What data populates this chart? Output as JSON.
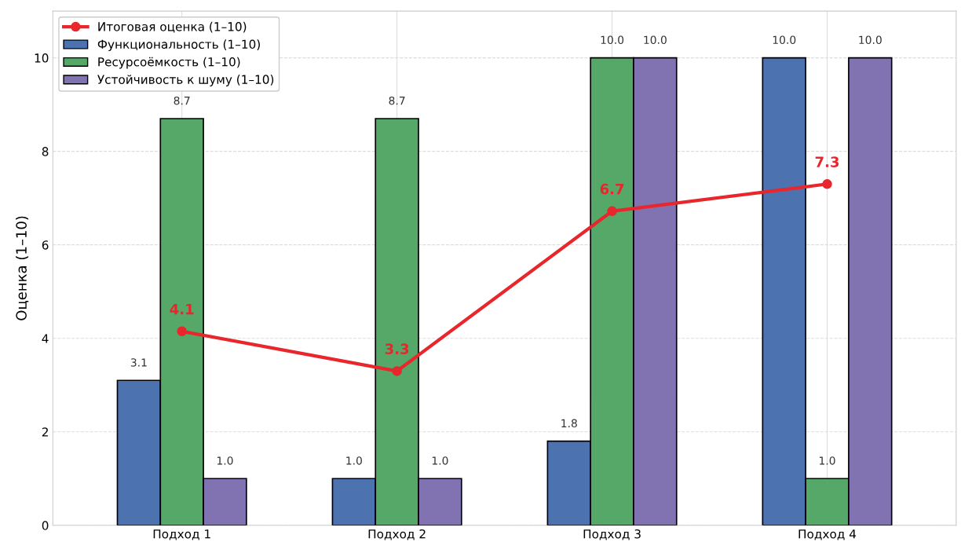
{
  "chart_data": {
    "type": "bar",
    "ylabel": "Оценка (1–10)",
    "categories": [
      "Подход 1",
      "Подход 2",
      "Подход 3",
      "Подход 4"
    ],
    "series": [
      {
        "name": "Функциональность (1–10)",
        "color": "#4c72b0",
        "values": [
          3.1,
          1.0,
          1.8,
          10.0
        ],
        "value_labels": [
          "3.1",
          "1.0",
          "1.8",
          "10.0"
        ]
      },
      {
        "name": "Ресурсоёмкость (1–10)",
        "color": "#55a868",
        "values": [
          8.7,
          8.7,
          10.0,
          1.0
        ],
        "value_labels": [
          "8.7",
          "8.7",
          "10.0",
          "1.0"
        ]
      },
      {
        "name": "Устойчивость к шуму (1–10)",
        "color": "#8172b2",
        "values": [
          1.0,
          1.0,
          10.0,
          10.0
        ],
        "value_labels": [
          "1.0",
          "1.0",
          "10.0",
          "10.0"
        ]
      },
      {
        "name": "Итоговая оценка (1–10)",
        "type": "line",
        "color": "#e8262b",
        "marker": "circle",
        "values": [
          4.15,
          3.3,
          6.72,
          7.3
        ],
        "value_labels": [
          "4.1",
          "3.3",
          "6.7",
          "7.3"
        ]
      }
    ],
    "ylim": [
      0,
      11
    ],
    "yticks": [
      0,
      2,
      4,
      6,
      8,
      10
    ],
    "grid": true,
    "legend": "top left"
  }
}
